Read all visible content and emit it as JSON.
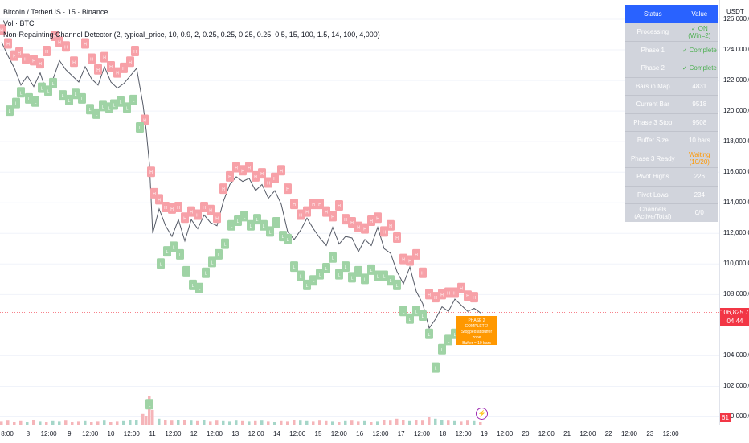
{
  "legend": {
    "symbol": "Bitcoin / TetherUS · 15 · Binance",
    "volume": "Vol · BTC",
    "indicator": "Non-Repainting Channel Detector (2, typical_price, 10, 0.9, 2, 0.25, 0.25, 0.25, 0.25, 0.5, 15, 100, 1.5, 14, 100, 4,000)"
  },
  "price_axis": {
    "unit": "USDT",
    "labels": [
      "126,000.00",
      "124,000.00",
      "122,000.00",
      "120,000.00",
      "118,000.00",
      "116,000.00",
      "114,000.00",
      "112,000.00",
      "110,000.00",
      "108,000.00",
      "104,000.00",
      "102,000.00",
      "100,000.00"
    ],
    "current_price": "106,825.77",
    "countdown": "04:44",
    "volume_badge": "61"
  },
  "time_axis": [
    "8:00",
    "8",
    "12:00",
    "9",
    "12:00",
    "10",
    "12:00",
    "11",
    "12:00",
    "12",
    "12:00",
    "13",
    "12:00",
    "14",
    "12:00",
    "15",
    "12:00",
    "16",
    "12:00",
    "17",
    "12:00",
    "18",
    "12:00",
    "19",
    "12:00",
    "20",
    "12:00",
    "21",
    "12:00",
    "22",
    "12:00",
    "23",
    "12:00"
  ],
  "status_table": {
    "header_status": "Status",
    "header_value": "Value",
    "rows": [
      {
        "status": "Processing",
        "value": "✓ ON (Win=2)",
        "state": "ok"
      },
      {
        "status": "Phase 1",
        "value": "✓ Complete",
        "state": "ok"
      },
      {
        "status": "Phase 2",
        "value": "✓ Complete",
        "state": "ok"
      },
      {
        "status": "Bars in Map",
        "value": "4831",
        "state": "plain"
      },
      {
        "status": "Current Bar",
        "value": "9518",
        "state": "plain"
      },
      {
        "status": "Phase 3 Stop",
        "value": "9508",
        "state": "plain"
      },
      {
        "status": "Buffer Size",
        "value": "10 bars",
        "state": "plain"
      },
      {
        "status": "Phase 3 Ready",
        "value": "Waiting (10/20)",
        "state": "wait"
      },
      {
        "status": "Pivot Highs",
        "value": "226",
        "state": "plain"
      },
      {
        "status": "Pivot Lows",
        "value": "234",
        "state": "plain"
      },
      {
        "status": "Channels (Active/Total)",
        "value": "0/0",
        "state": "plain"
      }
    ]
  },
  "callout": {
    "line1": "PHASE 2 COMPLETE!",
    "line2": "Stopped at buffer zone",
    "line3": "Buffer = 10 bars"
  },
  "colors": {
    "up": "#26a69a",
    "down": "#ef5350",
    "pivot_high": "#f7a1a8",
    "pivot_low": "#9fd3a5",
    "table_header": "#2962ff",
    "callout": "#ff9800"
  },
  "chart_data": {
    "type": "line",
    "x": [
      0,
      8,
      16,
      24,
      32,
      40,
      48,
      56,
      64,
      72,
      80,
      88,
      96,
      104,
      112,
      120,
      128,
      136,
      144,
      152,
      160,
      168,
      176,
      180,
      184,
      188,
      196,
      204,
      212,
      220,
      228,
      236,
      244,
      252,
      260,
      268,
      276,
      284,
      292,
      300,
      308,
      316,
      324,
      332,
      340,
      348,
      356,
      364,
      372,
      380,
      388,
      396,
      404,
      412,
      420,
      428,
      436,
      444,
      452,
      460,
      468,
      476,
      484,
      492,
      500,
      508,
      516,
      524,
      532,
      540,
      548,
      556,
      564,
      572,
      580,
      588,
      596
    ],
    "y": [
      124500,
      123600,
      122800,
      121700,
      122300,
      121600,
      122500,
      121200,
      122100,
      123300,
      122700,
      122300,
      121900,
      122900,
      122100,
      121700,
      122900,
      121900,
      121500,
      121800,
      122300,
      122800,
      120400,
      118700,
      116500,
      112000,
      113600,
      112500,
      111800,
      112900,
      111500,
      112900,
      112300,
      113200,
      112700,
      112500,
      114100,
      115200,
      115700,
      115400,
      115600,
      114800,
      115200,
      114300,
      114800,
      113900,
      112100,
      111600,
      112200,
      113000,
      112300,
      111700,
      111200,
      112400,
      111300,
      111800,
      111700,
      110800,
      111600,
      111200,
      112400,
      111000,
      110700,
      109500,
      108700,
      109800,
      108200,
      107400,
      105800,
      106400,
      107200,
      106900,
      107700,
      107300,
      106900,
      107100,
      106800
    ],
    "ylim": [
      99500,
      127000
    ],
    "current_price": 106825.77,
    "pivot_high_markers": [
      [
        0,
        125300
      ],
      [
        8,
        124400
      ],
      [
        16,
        123600
      ],
      [
        22,
        123800
      ],
      [
        30,
        123400
      ],
      [
        40,
        123300
      ],
      [
        48,
        123100
      ],
      [
        56,
        123900
      ],
      [
        66,
        124900
      ],
      [
        72,
        124500
      ],
      [
        80,
        124200
      ],
      [
        90,
        123200
      ],
      [
        104,
        124400
      ],
      [
        112,
        123400
      ],
      [
        120,
        122700
      ],
      [
        128,
        123500
      ],
      [
        136,
        122900
      ],
      [
        144,
        122500
      ],
      [
        152,
        122800
      ],
      [
        160,
        123200
      ],
      [
        166,
        123900
      ],
      [
        178,
        119400
      ],
      [
        186,
        116000
      ],
      [
        190,
        114600
      ],
      [
        196,
        114200
      ],
      [
        204,
        113700
      ],
      [
        212,
        113600
      ],
      [
        220,
        113700
      ],
      [
        228,
        113000
      ],
      [
        236,
        113400
      ],
      [
        244,
        113200
      ],
      [
        252,
        113700
      ],
      [
        260,
        113500
      ],
      [
        268,
        113000
      ],
      [
        276,
        114900
      ],
      [
        284,
        115700
      ],
      [
        292,
        116300
      ],
      [
        300,
        116100
      ],
      [
        308,
        116300
      ],
      [
        316,
        115700
      ],
      [
        324,
        115900
      ],
      [
        332,
        115300
      ],
      [
        340,
        115600
      ],
      [
        348,
        116100
      ],
      [
        356,
        114900
      ],
      [
        364,
        113900
      ],
      [
        372,
        113200
      ],
      [
        380,
        113400
      ],
      [
        388,
        113900
      ],
      [
        396,
        113900
      ],
      [
        404,
        113400
      ],
      [
        412,
        113100
      ],
      [
        420,
        113800
      ],
      [
        428,
        112900
      ],
      [
        436,
        112700
      ],
      [
        444,
        112400
      ],
      [
        452,
        112300
      ],
      [
        460,
        112800
      ],
      [
        468,
        113000
      ],
      [
        476,
        112100
      ],
      [
        484,
        112500
      ],
      [
        492,
        111700
      ],
      [
        500,
        110300
      ],
      [
        508,
        110200
      ],
      [
        516,
        110600
      ],
      [
        524,
        109400
      ],
      [
        532,
        108000
      ],
      [
        540,
        107800
      ],
      [
        548,
        108000
      ],
      [
        556,
        108100
      ],
      [
        564,
        108100
      ],
      [
        572,
        108400
      ],
      [
        580,
        107900
      ],
      [
        588,
        107800
      ]
    ],
    "pivot_low_markers": [
      [
        10,
        120000
      ],
      [
        18,
        120500
      ],
      [
        24,
        121200
      ],
      [
        34,
        120800
      ],
      [
        42,
        120600
      ],
      [
        50,
        121500
      ],
      [
        58,
        121300
      ],
      [
        64,
        121800
      ],
      [
        76,
        121000
      ],
      [
        84,
        120700
      ],
      [
        92,
        121100
      ],
      [
        100,
        120800
      ],
      [
        110,
        120100
      ],
      [
        118,
        119800
      ],
      [
        126,
        120300
      ],
      [
        134,
        120200
      ],
      [
        140,
        120400
      ],
      [
        148,
        120600
      ],
      [
        156,
        120200
      ],
      [
        164,
        120700
      ],
      [
        172,
        118900
      ],
      [
        184,
        100800
      ],
      [
        198,
        110000
      ],
      [
        206,
        110800
      ],
      [
        214,
        111100
      ],
      [
        222,
        110600
      ],
      [
        230,
        109500
      ],
      [
        238,
        108600
      ],
      [
        246,
        108400
      ],
      [
        254,
        109400
      ],
      [
        262,
        110100
      ],
      [
        270,
        110600
      ],
      [
        278,
        111300
      ],
      [
        286,
        112500
      ],
      [
        294,
        112800
      ],
      [
        302,
        113100
      ],
      [
        310,
        112500
      ],
      [
        318,
        112900
      ],
      [
        326,
        112500
      ],
      [
        334,
        112100
      ],
      [
        342,
        112700
      ],
      [
        350,
        111800
      ],
      [
        356,
        111600
      ],
      [
        364,
        109800
      ],
      [
        372,
        109200
      ],
      [
        380,
        108600
      ],
      [
        388,
        108900
      ],
      [
        396,
        109300
      ],
      [
        404,
        109700
      ],
      [
        412,
        110400
      ],
      [
        420,
        109300
      ],
      [
        428,
        109800
      ],
      [
        436,
        109100
      ],
      [
        444,
        109500
      ],
      [
        452,
        109000
      ],
      [
        460,
        109600
      ],
      [
        468,
        109200
      ],
      [
        476,
        109200
      ],
      [
        484,
        108900
      ],
      [
        492,
        108600
      ],
      [
        500,
        106900
      ],
      [
        508,
        106400
      ],
      [
        516,
        106900
      ],
      [
        524,
        106600
      ],
      [
        532,
        105400
      ],
      [
        540,
        103200
      ],
      [
        548,
        104400
      ],
      [
        556,
        105000
      ],
      [
        564,
        105400
      ],
      [
        572,
        105800
      ],
      [
        580,
        105600
      ],
      [
        588,
        105700
      ]
    ],
    "volume_height_fraction": [
      0.06,
      0.08,
      0.05,
      0.07,
      0.05,
      0.09,
      0.06,
      0.05,
      0.07,
      0.06,
      0.08,
      0.05,
      0.06,
      0.07,
      0.05,
      0.06,
      0.08,
      0.05,
      0.06,
      0.07,
      0.09,
      0.1,
      0.22,
      0.18,
      0.6,
      0.3,
      0.12,
      0.1,
      0.08,
      0.09,
      0.1,
      0.08,
      0.07,
      0.09,
      0.06,
      0.08,
      0.07,
      0.06,
      0.08,
      0.07,
      0.06,
      0.07,
      0.08,
      0.06,
      0.05,
      0.07,
      0.06,
      0.1,
      0.08,
      0.07,
      0.06,
      0.08,
      0.07,
      0.06,
      0.05,
      0.07,
      0.08,
      0.06,
      0.07,
      0.05,
      0.06,
      0.09,
      0.08,
      0.12,
      0.09,
      0.07,
      0.1,
      0.08,
      0.15,
      0.12,
      0.09,
      0.08,
      0.07,
      0.06,
      0.08,
      0.07,
      0.05
    ]
  }
}
